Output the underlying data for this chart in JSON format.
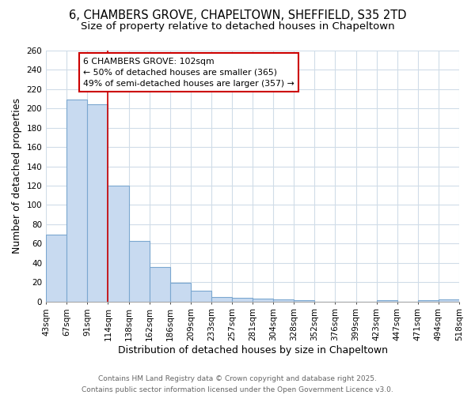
{
  "title_line1": "6, CHAMBERS GROVE, CHAPELTOWN, SHEFFIELD, S35 2TD",
  "title_line2": "Size of property relative to detached houses in Chapeltown",
  "xlabel": "Distribution of detached houses by size in Chapeltown",
  "ylabel": "Number of detached properties",
  "bar_values": [
    69,
    209,
    204,
    120,
    63,
    36,
    19,
    11,
    5,
    4,
    3,
    2,
    1,
    0,
    0,
    0,
    1,
    0,
    1,
    2
  ],
  "bar_labels": [
    "43sqm",
    "67sqm",
    "91sqm",
    "114sqm",
    "138sqm",
    "162sqm",
    "186sqm",
    "209sqm",
    "233sqm",
    "257sqm",
    "281sqm",
    "304sqm",
    "328sqm",
    "352sqm",
    "376sqm",
    "399sqm",
    "423sqm",
    "447sqm",
    "471sqm",
    "494sqm",
    "518sqm"
  ],
  "bar_color": "#c8daf0",
  "bar_edge_color": "#7ba7d0",
  "bar_width": 1.0,
  "ylim": [
    0,
    260
  ],
  "yticks": [
    0,
    20,
    40,
    60,
    80,
    100,
    120,
    140,
    160,
    180,
    200,
    220,
    240,
    260
  ],
  "red_line_x": 2.5,
  "red_line_color": "#cc0000",
  "annotation_text": "6 CHAMBERS GROVE: 102sqm\n← 50% of detached houses are smaller (365)\n49% of semi-detached houses are larger (357) →",
  "annotation_box_color": "#ffffff",
  "annotation_box_edge": "#cc0000",
  "footer_line1": "Contains HM Land Registry data © Crown copyright and database right 2025.",
  "footer_line2": "Contains public sector information licensed under the Open Government Licence v3.0.",
  "bg_color": "#ffffff",
  "grid_color": "#d0dce8",
  "title_fontsize": 10.5,
  "subtitle_fontsize": 9.5,
  "axis_label_fontsize": 9,
  "tick_fontsize": 7.5,
  "footer_fontsize": 6.5
}
